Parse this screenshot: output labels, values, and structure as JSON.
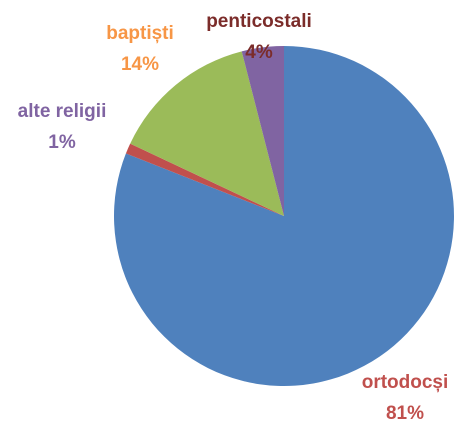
{
  "chart_data": {
    "type": "pie",
    "categories": [
      "ortodocși",
      "alte religii",
      "baptiști",
      "penticostali"
    ],
    "values": [
      81,
      1,
      14,
      4
    ],
    "value_labels": [
      "81%",
      "1%",
      "14%",
      "4%"
    ],
    "colors": [
      "#4f81bd",
      "#c0504d",
      "#9bbb59",
      "#8064a2"
    ],
    "label_colors": [
      "#c0504d",
      "#8064a2",
      "#f79646",
      "#7b2c2a"
    ]
  }
}
